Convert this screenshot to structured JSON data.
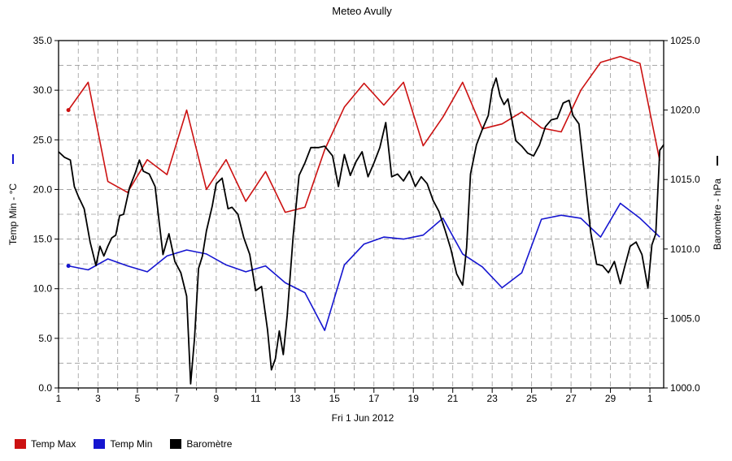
{
  "chart_data": {
    "type": "line",
    "title": "Meteo  Avully",
    "xlabel": "Fri 1 Jun 2012",
    "ylabel_left": "Temp Min - °C",
    "ylabel_right": "Baromètre - hPa",
    "x_tick_labels": [
      "1",
      "3",
      "5",
      "7",
      "9",
      "11",
      "13",
      "15",
      "17",
      "19",
      "21",
      "23",
      "25",
      "27",
      "29",
      "1"
    ],
    "x_range_days": [
      1,
      31.7
    ],
    "y_left": {
      "range": [
        0,
        35
      ],
      "ticks": [
        "0.0",
        "5.0",
        "10.0",
        "15.0",
        "20.0",
        "25.0",
        "30.0",
        "35.0"
      ]
    },
    "y_right": {
      "range": [
        1000,
        1025
      ],
      "ticks": [
        "1000.0",
        "1005.0",
        "1010.0",
        "1015.0",
        "1020.0",
        "1025.0"
      ]
    },
    "grid": true,
    "legend": [
      {
        "name": "Temp Max",
        "color": "#cc1111"
      },
      {
        "name": "Temp Min",
        "color": "#1515d0"
      },
      {
        "name": "Baromètre",
        "color": "#000000"
      }
    ],
    "series": [
      {
        "name": "Temp Max",
        "axis": "left",
        "color": "#cc1111",
        "x": [
          1.5,
          2.5,
          3.5,
          4.5,
          5.5,
          6.5,
          7.5,
          8.5,
          9.5,
          10.5,
          11.5,
          12.5,
          13.5,
          14.5,
          15.5,
          16.5,
          17.5,
          18.5,
          19.5,
          20.5,
          21.5,
          22.5,
          23.5,
          24.5,
          25.5,
          26.5,
          27.5,
          28.5,
          29.5,
          30.5,
          31.5
        ],
        "values": [
          28.0,
          30.8,
          20.8,
          19.7,
          23.0,
          21.5,
          28.0,
          20.0,
          23.0,
          18.8,
          21.8,
          17.7,
          18.2,
          24.0,
          28.3,
          30.7,
          28.5,
          30.8,
          24.4,
          27.3,
          30.8,
          26.1,
          26.6,
          27.8,
          26.2,
          25.8,
          30.0,
          32.8,
          33.4,
          32.7,
          22.9
        ]
      },
      {
        "name": "Temp Min",
        "axis": "left",
        "color": "#1515d0",
        "x": [
          1.5,
          2.5,
          3.5,
          4.5,
          5.5,
          6.5,
          7.5,
          8.5,
          9.5,
          10.5,
          11.5,
          12.5,
          13.5,
          14.5,
          15.5,
          16.5,
          17.5,
          18.5,
          19.5,
          20.5,
          21.5,
          22.5,
          23.5,
          24.5,
          25.5,
          26.5,
          27.5,
          28.5,
          29.5,
          30.5,
          31.5
        ],
        "values": [
          12.3,
          11.9,
          13.0,
          12.3,
          11.7,
          13.3,
          13.9,
          13.5,
          12.4,
          11.7,
          12.3,
          10.6,
          9.6,
          5.8,
          12.4,
          14.5,
          15.2,
          15.0,
          15.4,
          17.1,
          13.5,
          12.2,
          10.1,
          11.6,
          17.0,
          17.4,
          17.1,
          15.2,
          18.6,
          17.1,
          15.2
        ]
      },
      {
        "name": "Baromètre",
        "axis": "right",
        "color": "#000000",
        "x": [
          1.0,
          1.3,
          1.6,
          1.8,
          2.0,
          2.3,
          2.6,
          2.9,
          3.1,
          3.3,
          3.5,
          3.7,
          3.9,
          4.1,
          4.3,
          4.6,
          4.9,
          5.1,
          5.3,
          5.6,
          5.9,
          6.1,
          6.3,
          6.6,
          6.9,
          7.2,
          7.5,
          7.7,
          7.9,
          8.1,
          8.3,
          8.5,
          8.8,
          9.0,
          9.3,
          9.6,
          9.8,
          10.1,
          10.4,
          10.7,
          11.0,
          11.3,
          11.6,
          11.8,
          12.0,
          12.2,
          12.4,
          12.6,
          12.9,
          13.2,
          13.5,
          13.8,
          14.2,
          14.5,
          14.9,
          15.2,
          15.5,
          15.8,
          16.1,
          16.4,
          16.7,
          17.0,
          17.3,
          17.6,
          17.9,
          18.2,
          18.5,
          18.8,
          19.1,
          19.4,
          19.7,
          20.0,
          20.3,
          20.6,
          20.9,
          21.2,
          21.5,
          21.7,
          21.9,
          22.2,
          22.5,
          22.8,
          23.0,
          23.2,
          23.4,
          23.6,
          23.8,
          24.0,
          24.2,
          24.5,
          24.8,
          25.1,
          25.4,
          25.7,
          26.0,
          26.3,
          26.6,
          26.9,
          27.1,
          27.4,
          27.7,
          28.0,
          28.3,
          28.6,
          28.9,
          29.2,
          29.5,
          29.7,
          30.0,
          30.3,
          30.6,
          30.9,
          31.1,
          31.3,
          31.5,
          31.7
        ],
        "values": [
          1017.0,
          1016.6,
          1016.4,
          1014.5,
          1013.8,
          1012.9,
          1010.5,
          1008.8,
          1010.2,
          1009.5,
          1010.2,
          1010.8,
          1011.0,
          1012.4,
          1012.5,
          1014.4,
          1015.5,
          1016.4,
          1015.6,
          1015.4,
          1014.5,
          1012.0,
          1009.6,
          1011.1,
          1009.1,
          1008.3,
          1006.6,
          1000.3,
          1003.6,
          1008.6,
          1009.5,
          1011.3,
          1013.1,
          1014.7,
          1015.1,
          1012.9,
          1013.0,
          1012.5,
          1010.8,
          1009.6,
          1007.0,
          1007.3,
          1004.2,
          1001.3,
          1002.1,
          1004.1,
          1002.4,
          1005.2,
          1010.9,
          1015.3,
          1016.2,
          1017.3,
          1017.3,
          1017.4,
          1016.7,
          1014.5,
          1016.8,
          1015.3,
          1016.3,
          1017.0,
          1015.2,
          1016.2,
          1017.3,
          1019.1,
          1015.2,
          1015.4,
          1014.9,
          1015.6,
          1014.5,
          1015.2,
          1014.7,
          1013.5,
          1012.7,
          1011.4,
          1010.0,
          1008.2,
          1007.4,
          1010.1,
          1015.4,
          1017.5,
          1018.6,
          1019.6,
          1021.5,
          1022.3,
          1021.0,
          1020.4,
          1020.8,
          1019.3,
          1017.8,
          1017.4,
          1016.9,
          1016.7,
          1017.5,
          1018.8,
          1019.3,
          1019.4,
          1020.5,
          1020.7,
          1019.6,
          1019.0,
          1015.1,
          1011.2,
          1008.9,
          1008.8,
          1008.3,
          1009.1,
          1007.5,
          1008.6,
          1010.2,
          1010.5,
          1009.6,
          1007.2,
          1010.3,
          1011.1,
          1017.1,
          1017.5
        ]
      }
    ]
  }
}
